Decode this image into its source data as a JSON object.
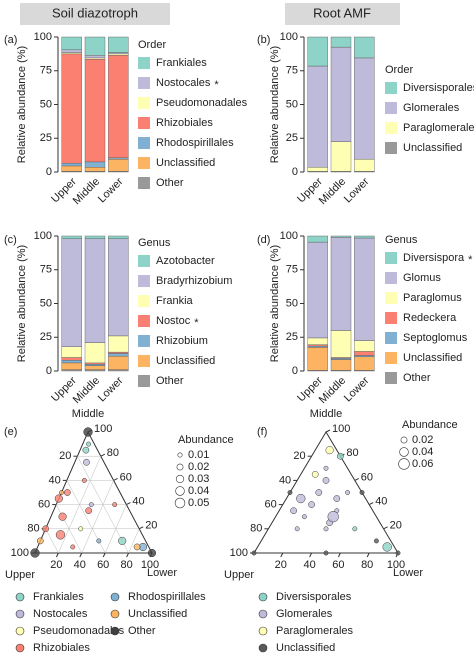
{
  "column_titles": [
    "Soil diazotroph",
    "Root AMF"
  ],
  "chart_data": [
    {
      "type": "stacked_bar",
      "panel": "(a)",
      "ylabel": "Relative abundance (%)",
      "legend_title": "Order",
      "categories": [
        "Upper",
        "Middle",
        "Lower"
      ],
      "ylim": [
        0,
        100
      ],
      "yticks": [
        0,
        25,
        50,
        75,
        100
      ],
      "series": [
        {
          "name": "Frankiales",
          "color": "#8dd3c7",
          "values": [
            9.5,
            13.5,
            11.5
          ]
        },
        {
          "name": "Nostocales",
          "mark": "*",
          "color": "#bebada",
          "values": [
            2,
            2,
            1
          ]
        },
        {
          "name": "Pseudomonadales",
          "color": "#ffffb3",
          "values": [
            1,
            1,
            1
          ]
        },
        {
          "name": "Rhizobiales",
          "color": "#fb8072",
          "values": [
            81,
            76,
            76
          ]
        },
        {
          "name": "Rhodospirillales",
          "color": "#80b1d3",
          "values": [
            2,
            4,
            1
          ]
        },
        {
          "name": "Unclassified",
          "color": "#fdb462",
          "values": [
            4,
            3,
            9
          ]
        },
        {
          "name": "Other",
          "color": "#999999",
          "values": [
            0.5,
            0.5,
            0.5
          ]
        }
      ]
    },
    {
      "type": "stacked_bar",
      "panel": "(b)",
      "ylabel": "Relative abundance (%)",
      "legend_title": "Order",
      "categories": [
        "Upper",
        "Middle",
        "Lower"
      ],
      "ylim": [
        0,
        100
      ],
      "yticks": [
        0,
        25,
        50,
        75,
        100
      ],
      "series": [
        {
          "name": "Diversisporales",
          "color": "#8dd3c7",
          "values": [
            21.5,
            7.5,
            15.5
          ]
        },
        {
          "name": "Glomerales",
          "color": "#bebada",
          "values": [
            75,
            70,
            75
          ]
        },
        {
          "name": "Paraglomerales",
          "color": "#ffffb3",
          "values": [
            3,
            22,
            9
          ]
        },
        {
          "name": "Unclassified",
          "color": "#999999",
          "values": [
            0.5,
            0.5,
            0.5
          ]
        }
      ]
    },
    {
      "type": "stacked_bar",
      "panel": "(c)",
      "ylabel": "Relative abundance (%)",
      "legend_title": "Genus",
      "categories": [
        "Upper",
        "Middle",
        "Lower"
      ],
      "ylim": [
        0,
        100
      ],
      "yticks": [
        0,
        25,
        50,
        75,
        100
      ],
      "series": [
        {
          "name": "Azotobacter",
          "color": "#8dd3c7",
          "values": [
            2,
            2,
            2
          ]
        },
        {
          "name": "Bradyrhizobium",
          "color": "#bebada",
          "values": [
            80,
            77,
            72
          ]
        },
        {
          "name": "Frankia",
          "color": "#ffffb3",
          "values": [
            8,
            15,
            12
          ]
        },
        {
          "name": "Nostoc",
          "mark": "*",
          "color": "#fb8072",
          "values": [
            2,
            1,
            1
          ]
        },
        {
          "name": "Rhizobium",
          "color": "#80b1d3",
          "values": [
            2,
            1,
            2
          ]
        },
        {
          "name": "Unclassified",
          "color": "#fdb462",
          "values": [
            5,
            3,
            10
          ]
        },
        {
          "name": "Other",
          "color": "#999999",
          "values": [
            1,
            1,
            1
          ]
        }
      ]
    },
    {
      "type": "stacked_bar",
      "panel": "(d)",
      "ylabel": "Relative abundance (%)",
      "legend_title": "Genus",
      "categories": [
        "Upper",
        "Middle",
        "Lower"
      ],
      "ylim": [
        0,
        100
      ],
      "yticks": [
        0,
        25,
        50,
        75,
        100
      ],
      "series": [
        {
          "name": "Diversispora",
          "mark": "*",
          "color": "#8dd3c7",
          "values": [
            4.5,
            1,
            1.5
          ]
        },
        {
          "name": "Glomus",
          "color": "#bebada",
          "values": [
            71,
            69,
            76
          ]
        },
        {
          "name": "Paraglomus",
          "color": "#ffffb3",
          "values": [
            5,
            20,
            8
          ]
        },
        {
          "name": "Redeckera",
          "color": "#fb8072",
          "values": [
            1,
            0.5,
            3
          ]
        },
        {
          "name": "Septoglomus",
          "color": "#80b1d3",
          "values": [
            1,
            1,
            1
          ]
        },
        {
          "name": "Unclassified",
          "color": "#fdb462",
          "values": [
            17,
            8,
            10
          ]
        },
        {
          "name": "Other",
          "color": "#999999",
          "values": [
            0.5,
            0.5,
            0.5
          ]
        }
      ]
    },
    {
      "type": "ternary",
      "panel": "(e)",
      "grid": true,
      "top": "Middle",
      "left": "Upper",
      "right": "Lower",
      "ticks": [
        20,
        40,
        60,
        80,
        100
      ],
      "size_title": "Abundance",
      "sizes": [
        0.01,
        0.02,
        0.03,
        0.04,
        0.05
      ],
      "series": [
        {
          "name": "Frankiales",
          "color": "#8dd3c7",
          "points": [
            [
              10,
              85,
              5,
              0.02
            ],
            [
              20,
              10,
              70,
              0.03
            ],
            [
              5,
              90,
              5,
              0.01
            ]
          ]
        },
        {
          "name": "Nostocales",
          "color": "#bebada",
          "points": [
            [
              30,
              40,
              30,
              0.01
            ],
            [
              15,
              75,
              10,
              0.02
            ]
          ]
        },
        {
          "name": "Pseudomonadales",
          "color": "#ffffb3",
          "points": [
            [
              50,
              20,
              30,
              0.01
            ]
          ]
        },
        {
          "name": "Rhizobiales",
          "color": "#fb8072",
          "points": [
            [
              60,
              30,
              10,
              0.03
            ],
            [
              45,
              50,
              5,
              0.02
            ],
            [
              70,
              15,
              15,
              0.04
            ],
            [
              35,
              35,
              30,
              0.02
            ],
            [
              55,
              45,
              0,
              0.03
            ],
            [
              80,
              20,
              0,
              0.02
            ],
            [
              10,
              40,
              50,
              0.01
            ],
            [
              25,
              60,
              15,
              0.01
            ],
            [
              65,
              5,
              30,
              0.01
            ]
          ]
        },
        {
          "name": "Rhodospirillales",
          "color": "#80b1d3",
          "points": [
            [
              5,
              5,
              90,
              0.03
            ],
            [
              40,
              10,
              50,
              0.01
            ]
          ]
        },
        {
          "name": "Unclassified",
          "color": "#fdb462",
          "points": [
            [
              90,
              10,
              0,
              0.02
            ],
            [
              10,
              5,
              85,
              0.02
            ],
            [
              50,
              50,
              0,
              0.01
            ]
          ]
        },
        {
          "name": "Other",
          "color": "#404040",
          "points": [
            [
              100,
              0,
              0,
              0.04
            ],
            [
              0,
              100,
              0,
              0.04
            ],
            [
              0,
              0,
              100,
              0.03
            ]
          ]
        }
      ]
    },
    {
      "type": "ternary",
      "panel": "(f)",
      "grid": false,
      "top": "Middle",
      "left": "Upper",
      "right": "Lower",
      "ticks": [
        20,
        40,
        60,
        80,
        100
      ],
      "size_title": "Abundance",
      "sizes": [
        0.02,
        0.04,
        0.06
      ],
      "series": [
        {
          "name": "Diversisporales",
          "color": "#8dd3c7",
          "points": [
            [
              5,
              5,
              90,
              0.04
            ],
            [
              20,
              20,
              60,
              0.01
            ],
            [
              0,
              80,
              20,
              0.02
            ]
          ]
        },
        {
          "name": "Glomerales",
          "color": "#bebada",
          "points": [
            [
              40,
              40,
              20,
              0.02
            ],
            [
              30,
              50,
              20,
              0.02
            ],
            [
              50,
              30,
              20,
              0.01
            ],
            [
              20,
              60,
              20,
              0.02
            ],
            [
              35,
              25,
              40,
              0.02
            ],
            [
              45,
              45,
              10,
              0.04
            ],
            [
              25,
              35,
              40,
              0.01
            ],
            [
              60,
              20,
              20,
              0.01
            ],
            [
              15,
              70,
              15,
              0.01
            ],
            [
              30,
              30,
              40,
              0.06
            ],
            [
              55,
              35,
              10,
              0.02
            ],
            [
              10,
              50,
              40,
              0.01
            ],
            [
              40,
              20,
              40,
              0.01
            ],
            [
              20,
              45,
              35,
              0.02
            ]
          ]
        },
        {
          "name": "Paraglomerales",
          "color": "#ffffb3",
          "points": [
            [
              5,
              85,
              10,
              0.03
            ],
            [
              25,
              65,
              10,
              0.02
            ]
          ]
        },
        {
          "name": "Unclassified",
          "color": "#595959",
          "points": [
            [
              50,
              50,
              0,
              0.01
            ],
            [
              0,
              50,
              50,
              0.01
            ],
            [
              50,
              0,
              50,
              0.01
            ],
            [
              100,
              0,
              0,
              0.01
            ],
            [
              0,
              0,
              100,
              0.01
            ],
            [
              10,
              10,
              80,
              0.01
            ]
          ]
        }
      ]
    }
  ]
}
